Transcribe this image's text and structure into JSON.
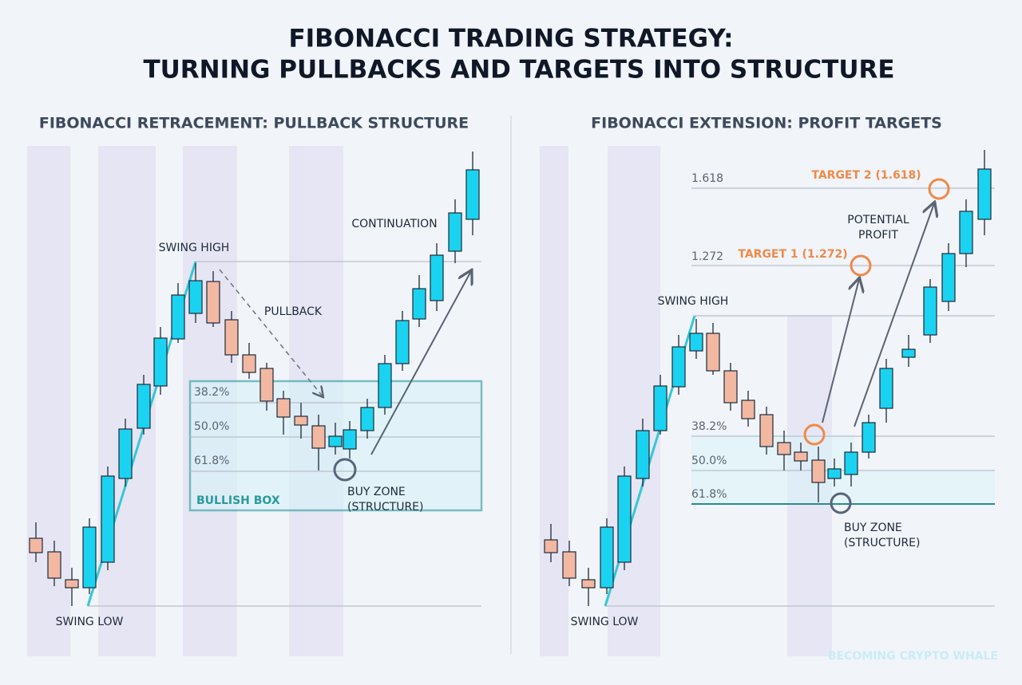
{
  "header": {
    "title_line1": "FIBONACCI TRADING STRATEGY:",
    "title_line2": "TURNING PULLBACKS AND TARGETS INTO STRUCTURE"
  },
  "left": {
    "title": "FIBONACCI RETRACEMENT: PULLBACK STRUCTURE",
    "swing_high": "SWING HIGH",
    "pullback": "PULLBACK",
    "continuation": "CONTINUATION",
    "levels": [
      "38.2%",
      "50.0%",
      "61.8%"
    ],
    "box": "BULLISH BOX",
    "buy_zone": [
      "BUY ZONE",
      "(STRUCTURE)"
    ],
    "swing_low": "SWING LOW"
  },
  "right": {
    "title": "FIBONACCI EXTENSION: PROFIT TARGETS",
    "ext_levels": [
      "1.618",
      "1.272"
    ],
    "target2": "TARGET 2 (1.618)",
    "target1": "TARGET 1 (1.272)",
    "potential": [
      "POTENTIAL",
      "PROFIT"
    ],
    "swing_high": "SWING HIGH",
    "levels": [
      "38.2%",
      "50.0%",
      "61.8%"
    ],
    "buy_zone": [
      "BUY ZONE",
      "(STRUCTURE)"
    ],
    "swing_low": "SWING LOW"
  },
  "watermark": "BECOMING CRYPTO WHALE"
}
